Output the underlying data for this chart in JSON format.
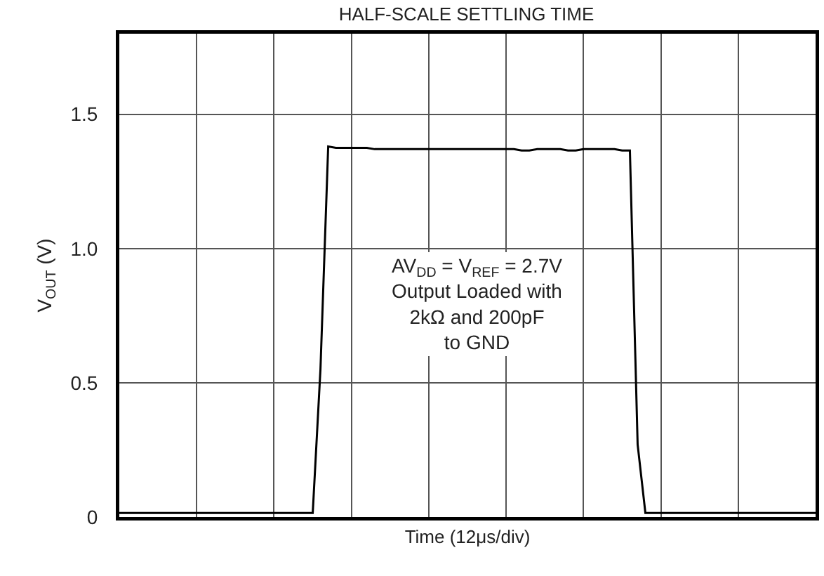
{
  "chart_data": {
    "type": "line",
    "title": "HALF-SCALE SETTLING TIME",
    "xlabel": "Time (12μs/div)",
    "ylabel": "V$_{OUT}$ (V)",
    "categories": [
      null,
      null,
      null,
      null,
      null,
      null,
      null,
      null,
      null,
      null,
      null,
      null,
      null,
      null,
      null,
      null,
      null,
      null,
      null,
      null,
      null,
      null,
      null,
      null,
      null,
      null,
      null,
      null,
      null,
      null,
      null,
      null,
      null,
      null,
      null,
      null,
      null,
      null,
      null,
      null,
      null,
      null,
      null,
      null,
      null,
      null,
      null,
      null,
      null,
      null,
      null,
      null,
      null,
      null,
      null,
      null,
      null,
      null,
      null,
      null,
      null,
      null,
      null,
      null,
      null,
      null,
      null,
      null,
      null,
      null,
      null,
      null,
      null,
      null,
      null,
      null,
      null,
      null,
      null,
      null,
      null,
      null,
      null,
      null,
      null,
      null,
      null,
      null,
      null,
      null,
      null
    ],
    "series": [
      {
        "color": "#000000",
        "values": [
          0.015,
          0.015,
          0.015,
          0.015,
          0.015,
          0.015,
          0.015,
          0.015,
          0.015,
          0.015,
          0.015,
          0.015,
          0.015,
          0.015,
          0.015,
          0.015,
          0.015,
          0.015,
          0.015,
          0.015,
          0.015,
          0.015,
          0.015,
          0.015,
          0.015,
          0.015,
          0.55,
          1.38,
          1.375,
          1.375,
          1.375,
          1.375,
          1.375,
          1.37,
          1.37,
          1.37,
          1.37,
          1.37,
          1.37,
          1.37,
          1.37,
          1.37,
          1.37,
          1.37,
          1.37,
          1.37,
          1.37,
          1.37,
          1.37,
          1.37,
          1.37,
          1.37,
          1.365,
          1.365,
          1.37,
          1.37,
          1.37,
          1.37,
          1.365,
          1.365,
          1.37,
          1.37,
          1.37,
          1.37,
          1.37,
          1.365,
          1.365,
          0.27,
          0.015,
          0.015,
          0.015,
          0.015,
          0.015,
          0.015,
          0.015,
          0.015,
          0.015,
          0.015,
          0.015,
          0.015,
          0.015,
          0.015,
          0.015,
          0.015,
          0.015,
          0.015,
          0.015,
          0.015,
          0.015,
          0.015,
          0.015
        ]
      }
    ],
    "ylim": [
      0,
      1.8
    ],
    "yticks": [
      0,
      0.5,
      {
        "value": 1,
        "label": "1.0"
      },
      1.5
    ],
    "grid": true,
    "marker": "none",
    "line_style": "solid",
    "annotations": [
      "AV$_{DD}$ = V$_{REF}$ = 2.7V\nOutput Loaded with\n2kΩ and 200pF\nto GND"
    ]
  }
}
